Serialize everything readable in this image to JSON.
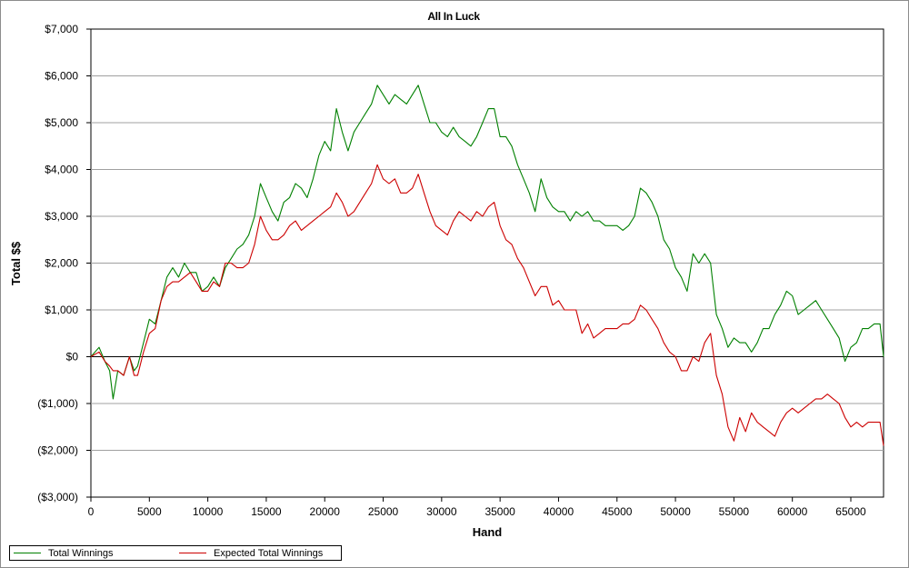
{
  "chart_data": {
    "type": "line",
    "title": "All In Luck",
    "xlabel": "Hand",
    "ylabel": "Total $$",
    "xlim": [
      0,
      67800
    ],
    "ylim": [
      -3000,
      7000
    ],
    "x_ticks": [
      0,
      5000,
      10000,
      15000,
      20000,
      25000,
      30000,
      35000,
      40000,
      45000,
      50000,
      55000,
      60000,
      65000
    ],
    "y_ticks": [
      7000,
      6000,
      5000,
      4000,
      3000,
      2000,
      1000,
      0,
      -1000,
      -2000,
      -3000
    ],
    "y_tick_labels": [
      "$7,000",
      "$6,000",
      "$5,000",
      "$4,000",
      "$3,000",
      "$2,000",
      "$1,000",
      "$0",
      "($1,000)",
      "($2,000)",
      "($3,000)"
    ],
    "grid": "horizontal",
    "legend_position": "bottom",
    "series": [
      {
        "name": "Total Winnings",
        "color": "#008000",
        "points": [
          [
            0,
            0
          ],
          [
            700,
            200
          ],
          [
            1200,
            -100
          ],
          [
            1600,
            -300
          ],
          [
            1900,
            -900
          ],
          [
            2300,
            -300
          ],
          [
            2800,
            -400
          ],
          [
            3300,
            0
          ],
          [
            3700,
            -300
          ],
          [
            4000,
            -200
          ],
          [
            4500,
            300
          ],
          [
            5000,
            800
          ],
          [
            5500,
            700
          ],
          [
            6000,
            1200
          ],
          [
            6500,
            1700
          ],
          [
            7000,
            1900
          ],
          [
            7500,
            1700
          ],
          [
            8000,
            2000
          ],
          [
            8500,
            1800
          ],
          [
            9000,
            1800
          ],
          [
            9500,
            1400
          ],
          [
            10000,
            1500
          ],
          [
            10500,
            1700
          ],
          [
            11000,
            1500
          ],
          [
            11500,
            1900
          ],
          [
            12000,
            2100
          ],
          [
            12500,
            2300
          ],
          [
            13000,
            2400
          ],
          [
            13500,
            2600
          ],
          [
            14000,
            3000
          ],
          [
            14500,
            3700
          ],
          [
            15000,
            3400
          ],
          [
            15500,
            3100
          ],
          [
            16000,
            2900
          ],
          [
            16500,
            3300
          ],
          [
            17000,
            3400
          ],
          [
            17500,
            3700
          ],
          [
            18000,
            3600
          ],
          [
            18500,
            3400
          ],
          [
            19000,
            3800
          ],
          [
            19500,
            4300
          ],
          [
            20000,
            4600
          ],
          [
            20500,
            4400
          ],
          [
            21000,
            5300
          ],
          [
            21500,
            4800
          ],
          [
            22000,
            4400
          ],
          [
            22500,
            4800
          ],
          [
            23000,
            5000
          ],
          [
            23500,
            5200
          ],
          [
            24000,
            5400
          ],
          [
            24500,
            5800
          ],
          [
            25000,
            5600
          ],
          [
            25500,
            5400
          ],
          [
            26000,
            5600
          ],
          [
            26500,
            5500
          ],
          [
            27000,
            5400
          ],
          [
            27500,
            5600
          ],
          [
            28000,
            5800
          ],
          [
            28500,
            5400
          ],
          [
            29000,
            5000
          ],
          [
            29500,
            5000
          ],
          [
            30000,
            4800
          ],
          [
            30500,
            4700
          ],
          [
            31000,
            4900
          ],
          [
            31500,
            4700
          ],
          [
            32000,
            4600
          ],
          [
            32500,
            4500
          ],
          [
            33000,
            4700
          ],
          [
            33500,
            5000
          ],
          [
            34000,
            5300
          ],
          [
            34500,
            5300
          ],
          [
            35000,
            4700
          ],
          [
            35500,
            4700
          ],
          [
            36000,
            4500
          ],
          [
            36500,
            4100
          ],
          [
            37000,
            3800
          ],
          [
            37500,
            3500
          ],
          [
            38000,
            3100
          ],
          [
            38500,
            3800
          ],
          [
            39000,
            3400
          ],
          [
            39500,
            3200
          ],
          [
            40000,
            3100
          ],
          [
            40500,
            3100
          ],
          [
            41000,
            2900
          ],
          [
            41500,
            3100
          ],
          [
            42000,
            3000
          ],
          [
            42500,
            3100
          ],
          [
            43000,
            2900
          ],
          [
            43500,
            2900
          ],
          [
            44000,
            2800
          ],
          [
            44500,
            2800
          ],
          [
            45000,
            2800
          ],
          [
            45500,
            2700
          ],
          [
            46000,
            2800
          ],
          [
            46500,
            3000
          ],
          [
            47000,
            3600
          ],
          [
            47500,
            3500
          ],
          [
            48000,
            3300
          ],
          [
            48500,
            3000
          ],
          [
            49000,
            2500
          ],
          [
            49500,
            2300
          ],
          [
            50000,
            1900
          ],
          [
            50500,
            1700
          ],
          [
            51000,
            1400
          ],
          [
            51500,
            2200
          ],
          [
            52000,
            2000
          ],
          [
            52500,
            2200
          ],
          [
            53000,
            2000
          ],
          [
            53500,
            900
          ],
          [
            54000,
            600
          ],
          [
            54500,
            200
          ],
          [
            55000,
            400
          ],
          [
            55500,
            300
          ],
          [
            56000,
            300
          ],
          [
            56500,
            100
          ],
          [
            57000,
            300
          ],
          [
            57500,
            600
          ],
          [
            58000,
            600
          ],
          [
            58500,
            900
          ],
          [
            59000,
            1100
          ],
          [
            59500,
            1400
          ],
          [
            60000,
            1300
          ],
          [
            60500,
            900
          ],
          [
            61000,
            1000
          ],
          [
            61500,
            1100
          ],
          [
            62000,
            1200
          ],
          [
            62500,
            1000
          ],
          [
            63000,
            800
          ],
          [
            63500,
            600
          ],
          [
            64000,
            400
          ],
          [
            64500,
            -100
          ],
          [
            65000,
            200
          ],
          [
            65500,
            300
          ],
          [
            66000,
            600
          ],
          [
            66500,
            600
          ],
          [
            67000,
            700
          ],
          [
            67500,
            700
          ],
          [
            67800,
            0
          ]
        ]
      },
      {
        "name": "Expected Total Winnings",
        "color": "#cc0000",
        "points": [
          [
            0,
            0
          ],
          [
            700,
            100
          ],
          [
            1200,
            -100
          ],
          [
            1600,
            -200
          ],
          [
            1900,
            -300
          ],
          [
            2300,
            -300
          ],
          [
            2800,
            -400
          ],
          [
            3300,
            0
          ],
          [
            3700,
            -400
          ],
          [
            4000,
            -400
          ],
          [
            4500,
            100
          ],
          [
            5000,
            500
          ],
          [
            5500,
            600
          ],
          [
            6000,
            1200
          ],
          [
            6500,
            1500
          ],
          [
            7000,
            1600
          ],
          [
            7500,
            1600
          ],
          [
            8000,
            1700
          ],
          [
            8500,
            1800
          ],
          [
            9000,
            1600
          ],
          [
            9500,
            1400
          ],
          [
            10000,
            1400
          ],
          [
            10500,
            1600
          ],
          [
            11000,
            1500
          ],
          [
            11500,
            2000
          ],
          [
            12000,
            2000
          ],
          [
            12500,
            1900
          ],
          [
            13000,
            1900
          ],
          [
            13500,
            2000
          ],
          [
            14000,
            2400
          ],
          [
            14500,
            3000
          ],
          [
            15000,
            2700
          ],
          [
            15500,
            2500
          ],
          [
            16000,
            2500
          ],
          [
            16500,
            2600
          ],
          [
            17000,
            2800
          ],
          [
            17500,
            2900
          ],
          [
            18000,
            2700
          ],
          [
            18500,
            2800
          ],
          [
            19000,
            2900
          ],
          [
            19500,
            3000
          ],
          [
            20000,
            3100
          ],
          [
            20500,
            3200
          ],
          [
            21000,
            3500
          ],
          [
            21500,
            3300
          ],
          [
            22000,
            3000
          ],
          [
            22500,
            3100
          ],
          [
            23000,
            3300
          ],
          [
            23500,
            3500
          ],
          [
            24000,
            3700
          ],
          [
            24500,
            4100
          ],
          [
            25000,
            3800
          ],
          [
            25500,
            3700
          ],
          [
            26000,
            3800
          ],
          [
            26500,
            3500
          ],
          [
            27000,
            3500
          ],
          [
            27500,
            3600
          ],
          [
            28000,
            3900
          ],
          [
            28500,
            3500
          ],
          [
            29000,
            3100
          ],
          [
            29500,
            2800
          ],
          [
            30000,
            2700
          ],
          [
            30500,
            2600
          ],
          [
            31000,
            2900
          ],
          [
            31500,
            3100
          ],
          [
            32000,
            3000
          ],
          [
            32500,
            2900
          ],
          [
            33000,
            3100
          ],
          [
            33500,
            3000
          ],
          [
            34000,
            3200
          ],
          [
            34500,
            3300
          ],
          [
            35000,
            2800
          ],
          [
            35500,
            2500
          ],
          [
            36000,
            2400
          ],
          [
            36500,
            2100
          ],
          [
            37000,
            1900
          ],
          [
            37500,
            1600
          ],
          [
            38000,
            1300
          ],
          [
            38500,
            1500
          ],
          [
            39000,
            1500
          ],
          [
            39500,
            1100
          ],
          [
            40000,
            1200
          ],
          [
            40500,
            1000
          ],
          [
            41000,
            1000
          ],
          [
            41500,
            1000
          ],
          [
            42000,
            500
          ],
          [
            42500,
            700
          ],
          [
            43000,
            400
          ],
          [
            43500,
            500
          ],
          [
            44000,
            600
          ],
          [
            44500,
            600
          ],
          [
            45000,
            600
          ],
          [
            45500,
            700
          ],
          [
            46000,
            700
          ],
          [
            46500,
            800
          ],
          [
            47000,
            1100
          ],
          [
            47500,
            1000
          ],
          [
            48000,
            800
          ],
          [
            48500,
            600
          ],
          [
            49000,
            300
          ],
          [
            49500,
            100
          ],
          [
            50000,
            0
          ],
          [
            50500,
            -300
          ],
          [
            51000,
            -300
          ],
          [
            51500,
            0
          ],
          [
            52000,
            -100
          ],
          [
            52500,
            300
          ],
          [
            53000,
            500
          ],
          [
            53500,
            -400
          ],
          [
            54000,
            -800
          ],
          [
            54500,
            -1500
          ],
          [
            55000,
            -1800
          ],
          [
            55500,
            -1300
          ],
          [
            56000,
            -1600
          ],
          [
            56500,
            -1200
          ],
          [
            57000,
            -1400
          ],
          [
            57500,
            -1500
          ],
          [
            58000,
            -1600
          ],
          [
            58500,
            -1700
          ],
          [
            59000,
            -1400
          ],
          [
            59500,
            -1200
          ],
          [
            60000,
            -1100
          ],
          [
            60500,
            -1200
          ],
          [
            61000,
            -1100
          ],
          [
            61500,
            -1000
          ],
          [
            62000,
            -900
          ],
          [
            62500,
            -900
          ],
          [
            63000,
            -800
          ],
          [
            63500,
            -900
          ],
          [
            64000,
            -1000
          ],
          [
            64500,
            -1300
          ],
          [
            65000,
            -1500
          ],
          [
            65500,
            -1400
          ],
          [
            66000,
            -1500
          ],
          [
            66500,
            -1400
          ],
          [
            67000,
            -1400
          ],
          [
            67500,
            -1400
          ],
          [
            67800,
            -1900
          ]
        ]
      }
    ]
  }
}
